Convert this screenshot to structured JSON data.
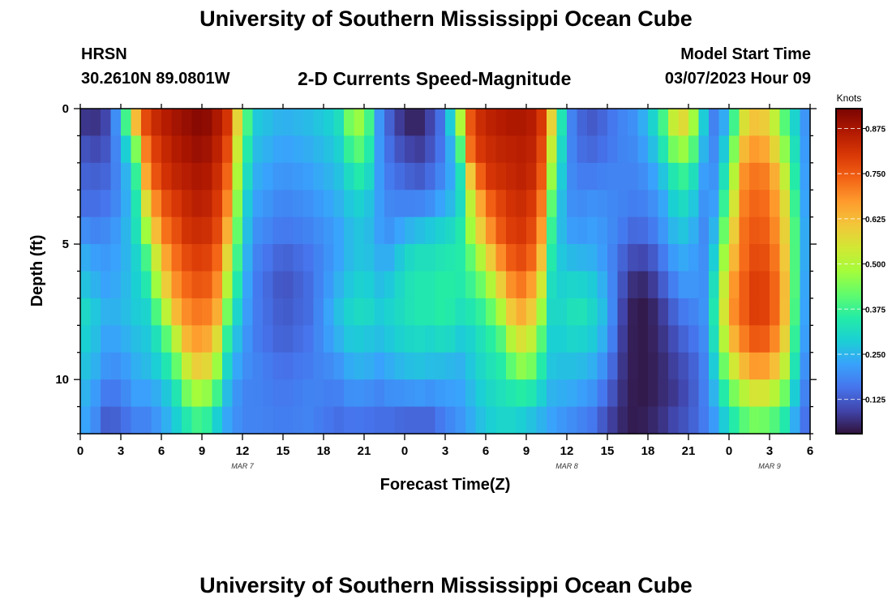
{
  "header": {
    "title": "University of Southern Mississippi Ocean Cube",
    "station": "HRSN",
    "coordinates": "30.2610N  89.0801W",
    "subtitle": "2-D Currents Speed-Magnitude",
    "model_start_label": "Model Start Time",
    "model_start_value": "03/07/2023 Hour 09"
  },
  "footer": {
    "title": "University of Southern Mississippi Ocean Cube"
  },
  "chart_data": {
    "type": "heatmap",
    "xlabel": "Forecast Time(Z)",
    "ylabel": "Depth (ft)",
    "colorbar_label": "Knots",
    "colormap": [
      "#30123b",
      "#4145ab",
      "#4675ed",
      "#39a2fc",
      "#1bcfd4",
      "#24eca6",
      "#61fc6c",
      "#a4fc3b",
      "#d1e834",
      "#f3c63a",
      "#fe9b2d",
      "#f36315",
      "#d93806",
      "#b11901",
      "#7a0403"
    ],
    "value_range": [
      0.03,
      0.93
    ],
    "colorbar_ticks": [
      0.875,
      0.75,
      0.625,
      0.5,
      0.375,
      0.25,
      0.125
    ],
    "colorbar_tick_labels": [
      "0.875",
      "0.750",
      "0.625",
      "0.500",
      "0.375",
      "0.250",
      "0.125"
    ],
    "x_range_hours": [
      0,
      54
    ],
    "x_tick_hours": [
      0,
      3,
      6,
      9,
      12,
      15,
      18,
      21,
      24,
      27,
      30,
      33,
      36,
      39,
      42,
      45,
      48,
      51,
      54
    ],
    "x_tick_labels": [
      "0",
      "3",
      "6",
      "9",
      "12",
      "15",
      "18",
      "21",
      "0",
      "3",
      "6",
      "9",
      "12",
      "15",
      "18",
      "21",
      "0",
      "3",
      "6"
    ],
    "date_labels": [
      {
        "label": "MAR 7",
        "hour": 12
      },
      {
        "label": "MAR 8",
        "hour": 36
      },
      {
        "label": "MAR 9",
        "hour": 51
      }
    ],
    "y_range_ft": [
      0,
      12
    ],
    "y_tick_values": [
      0,
      5,
      10
    ],
    "y_tick_labels": [
      "0",
      "5",
      "10"
    ],
    "depths_ft": [
      0.5,
      1.5,
      2.5,
      3.5,
      4.5,
      5.5,
      6.5,
      7.5,
      8.5,
      9.5,
      10.5,
      11.5
    ],
    "keyframes": [
      {
        "hour": 0,
        "speeds": [
          0.08,
          0.12,
          0.14,
          0.15,
          0.2,
          0.25,
          0.28,
          0.32,
          0.3,
          0.28,
          0.26,
          0.24
        ]
      },
      {
        "hour": 1,
        "speeds": [
          0.07,
          0.1,
          0.13,
          0.15,
          0.18,
          0.22,
          0.25,
          0.28,
          0.27,
          0.25,
          0.22,
          0.2
        ]
      },
      {
        "hour": 2,
        "speeds": [
          0.1,
          0.12,
          0.14,
          0.16,
          0.19,
          0.21,
          0.22,
          0.24,
          0.22,
          0.2,
          0.16,
          0.12
        ]
      },
      {
        "hour": 3,
        "speeds": [
          0.25,
          0.22,
          0.2,
          0.2,
          0.22,
          0.23,
          0.24,
          0.25,
          0.23,
          0.2,
          0.17,
          0.14
        ]
      },
      {
        "hour": 4,
        "speeds": [
          0.6,
          0.4,
          0.32,
          0.3,
          0.3,
          0.28,
          0.28,
          0.28,
          0.26,
          0.24,
          0.22,
          0.18
        ]
      },
      {
        "hour": 5,
        "speeds": [
          0.8,
          0.75,
          0.7,
          0.6,
          0.5,
          0.4,
          0.35,
          0.3,
          0.28,
          0.26,
          0.22,
          0.18
        ]
      },
      {
        "hour": 6,
        "speeds": [
          0.85,
          0.82,
          0.8,
          0.75,
          0.7,
          0.62,
          0.55,
          0.45,
          0.35,
          0.3,
          0.25,
          0.22
        ]
      },
      {
        "hour": 7,
        "speeds": [
          0.88,
          0.86,
          0.84,
          0.8,
          0.76,
          0.72,
          0.68,
          0.62,
          0.5,
          0.4,
          0.32,
          0.28
        ]
      },
      {
        "hour": 8,
        "speeds": [
          0.9,
          0.88,
          0.86,
          0.84,
          0.82,
          0.78,
          0.74,
          0.7,
          0.65,
          0.55,
          0.45,
          0.35
        ]
      },
      {
        "hour": 9,
        "speeds": [
          0.92,
          0.9,
          0.88,
          0.86,
          0.83,
          0.8,
          0.77,
          0.72,
          0.68,
          0.62,
          0.5,
          0.4
        ]
      },
      {
        "hour": 10,
        "speeds": [
          0.88,
          0.86,
          0.84,
          0.82,
          0.8,
          0.76,
          0.72,
          0.68,
          0.6,
          0.5,
          0.4,
          0.3
        ]
      },
      {
        "hour": 11,
        "speeds": [
          0.8,
          0.76,
          0.72,
          0.68,
          0.62,
          0.55,
          0.48,
          0.4,
          0.33,
          0.28,
          0.24,
          0.22
        ]
      },
      {
        "hour": 12,
        "speeds": [
          0.45,
          0.4,
          0.36,
          0.32,
          0.3,
          0.28,
          0.26,
          0.24,
          0.22,
          0.2,
          0.18,
          0.18
        ]
      },
      {
        "hour": 13,
        "speeds": [
          0.28,
          0.26,
          0.24,
          0.22,
          0.2,
          0.18,
          0.17,
          0.17,
          0.17,
          0.18,
          0.18,
          0.18
        ]
      },
      {
        "hour": 15,
        "speeds": [
          0.24,
          0.22,
          0.2,
          0.18,
          0.16,
          0.13,
          0.11,
          0.12,
          0.13,
          0.15,
          0.16,
          0.17
        ]
      },
      {
        "hour": 17,
        "speeds": [
          0.26,
          0.24,
          0.22,
          0.2,
          0.18,
          0.16,
          0.15,
          0.15,
          0.16,
          0.17,
          0.18,
          0.18
        ]
      },
      {
        "hour": 19,
        "speeds": [
          0.3,
          0.28,
          0.26,
          0.24,
          0.22,
          0.22,
          0.24,
          0.26,
          0.24,
          0.2,
          0.17,
          0.15
        ]
      },
      {
        "hour": 20,
        "speeds": [
          0.45,
          0.38,
          0.32,
          0.28,
          0.26,
          0.26,
          0.28,
          0.3,
          0.28,
          0.24,
          0.2,
          0.16
        ]
      },
      {
        "hour": 21,
        "speeds": [
          0.48,
          0.42,
          0.36,
          0.3,
          0.28,
          0.28,
          0.3,
          0.32,
          0.28,
          0.25,
          0.2,
          0.16
        ]
      },
      {
        "hour": 22,
        "speeds": [
          0.22,
          0.22,
          0.22,
          0.22,
          0.22,
          0.24,
          0.26,
          0.28,
          0.26,
          0.22,
          0.18,
          0.15
        ]
      },
      {
        "hour": 23,
        "speeds": [
          0.12,
          0.14,
          0.16,
          0.18,
          0.2,
          0.24,
          0.28,
          0.3,
          0.28,
          0.24,
          0.2,
          0.15
        ]
      },
      {
        "hour": 24,
        "speeds": [
          0.06,
          0.1,
          0.14,
          0.18,
          0.24,
          0.3,
          0.32,
          0.32,
          0.3,
          0.26,
          0.2,
          0.14
        ]
      },
      {
        "hour": 25,
        "speeds": [
          0.05,
          0.08,
          0.12,
          0.18,
          0.26,
          0.32,
          0.34,
          0.34,
          0.31,
          0.27,
          0.21,
          0.14
        ]
      },
      {
        "hour": 26,
        "speeds": [
          0.1,
          0.12,
          0.15,
          0.2,
          0.28,
          0.32,
          0.34,
          0.34,
          0.3,
          0.26,
          0.2,
          0.14
        ]
      },
      {
        "hour": 27,
        "speeds": [
          0.18,
          0.18,
          0.2,
          0.24,
          0.3,
          0.34,
          0.36,
          0.36,
          0.32,
          0.26,
          0.22,
          0.18
        ]
      },
      {
        "hour": 28,
        "speeds": [
          0.45,
          0.34,
          0.28,
          0.28,
          0.32,
          0.34,
          0.34,
          0.32,
          0.28,
          0.24,
          0.22,
          0.2
        ]
      },
      {
        "hour": 29,
        "speeds": [
          0.8,
          0.78,
          0.65,
          0.55,
          0.5,
          0.42,
          0.38,
          0.34,
          0.3,
          0.28,
          0.26,
          0.24
        ]
      },
      {
        "hour": 30,
        "speeds": [
          0.84,
          0.82,
          0.8,
          0.72,
          0.65,
          0.55,
          0.45,
          0.38,
          0.34,
          0.32,
          0.3,
          0.28
        ]
      },
      {
        "hour": 31,
        "speeds": [
          0.86,
          0.84,
          0.82,
          0.78,
          0.75,
          0.68,
          0.58,
          0.48,
          0.38,
          0.34,
          0.32,
          0.3
        ]
      },
      {
        "hour": 32,
        "speeds": [
          0.87,
          0.85,
          0.84,
          0.82,
          0.8,
          0.76,
          0.7,
          0.62,
          0.52,
          0.42,
          0.34,
          0.3
        ]
      },
      {
        "hour": 33,
        "speeds": [
          0.87,
          0.86,
          0.85,
          0.83,
          0.81,
          0.78,
          0.72,
          0.66,
          0.58,
          0.48,
          0.36,
          0.28
        ]
      },
      {
        "hour": 34,
        "speeds": [
          0.84,
          0.82,
          0.8,
          0.76,
          0.72,
          0.66,
          0.58,
          0.5,
          0.42,
          0.36,
          0.3,
          0.25
        ]
      },
      {
        "hour": 35,
        "speeds": [
          0.55,
          0.48,
          0.42,
          0.36,
          0.32,
          0.3,
          0.28,
          0.28,
          0.27,
          0.26,
          0.24,
          0.22
        ]
      },
      {
        "hour": 36,
        "speeds": [
          0.2,
          0.2,
          0.2,
          0.2,
          0.22,
          0.26,
          0.3,
          0.32,
          0.3,
          0.27,
          0.24,
          0.2
        ]
      },
      {
        "hour": 37,
        "speeds": [
          0.14,
          0.15,
          0.17,
          0.19,
          0.21,
          0.25,
          0.3,
          0.33,
          0.3,
          0.26,
          0.22,
          0.18
        ]
      },
      {
        "hour": 38,
        "speeds": [
          0.12,
          0.14,
          0.17,
          0.2,
          0.22,
          0.24,
          0.28,
          0.3,
          0.28,
          0.24,
          0.2,
          0.16
        ]
      },
      {
        "hour": 39,
        "speeds": [
          0.15,
          0.16,
          0.18,
          0.19,
          0.2,
          0.2,
          0.22,
          0.24,
          0.22,
          0.18,
          0.14,
          0.1
        ]
      },
      {
        "hour": 40,
        "speeds": [
          0.18,
          0.18,
          0.18,
          0.18,
          0.17,
          0.14,
          0.12,
          0.1,
          0.09,
          0.08,
          0.07,
          0.06
        ]
      },
      {
        "hour": 41,
        "speeds": [
          0.2,
          0.19,
          0.18,
          0.17,
          0.14,
          0.1,
          0.06,
          0.04,
          0.04,
          0.04,
          0.04,
          0.04
        ]
      },
      {
        "hour": 42,
        "speeds": [
          0.26,
          0.23,
          0.2,
          0.18,
          0.15,
          0.1,
          0.06,
          0.04,
          0.04,
          0.04,
          0.04,
          0.05
        ]
      },
      {
        "hour": 43,
        "speeds": [
          0.36,
          0.32,
          0.26,
          0.22,
          0.2,
          0.16,
          0.12,
          0.08,
          0.07,
          0.06,
          0.06,
          0.07
        ]
      },
      {
        "hour": 44,
        "speeds": [
          0.55,
          0.45,
          0.35,
          0.3,
          0.26,
          0.22,
          0.18,
          0.14,
          0.11,
          0.09,
          0.08,
          0.1
        ]
      },
      {
        "hour": 45,
        "speeds": [
          0.58,
          0.48,
          0.38,
          0.32,
          0.28,
          0.24,
          0.22,
          0.18,
          0.15,
          0.12,
          0.11,
          0.12
        ]
      },
      {
        "hour": 46,
        "speeds": [
          0.3,
          0.26,
          0.22,
          0.2,
          0.18,
          0.18,
          0.18,
          0.18,
          0.17,
          0.16,
          0.16,
          0.16
        ]
      },
      {
        "hour": 47,
        "speeds": [
          0.16,
          0.18,
          0.2,
          0.22,
          0.26,
          0.3,
          0.34,
          0.36,
          0.34,
          0.3,
          0.26,
          0.22
        ]
      },
      {
        "hour": 48,
        "speeds": [
          0.28,
          0.34,
          0.4,
          0.46,
          0.52,
          0.58,
          0.64,
          0.66,
          0.6,
          0.5,
          0.4,
          0.32
        ]
      },
      {
        "hour": 49,
        "speeds": [
          0.55,
          0.62,
          0.68,
          0.7,
          0.72,
          0.72,
          0.74,
          0.74,
          0.7,
          0.62,
          0.5,
          0.4
        ]
      },
      {
        "hour": 50,
        "speeds": [
          0.62,
          0.68,
          0.72,
          0.74,
          0.76,
          0.78,
          0.8,
          0.8,
          0.76,
          0.68,
          0.56,
          0.44
        ]
      },
      {
        "hour": 51,
        "speeds": [
          0.58,
          0.64,
          0.7,
          0.72,
          0.74,
          0.76,
          0.78,
          0.78,
          0.74,
          0.66,
          0.54,
          0.42
        ]
      },
      {
        "hour": 52,
        "speeds": [
          0.42,
          0.48,
          0.55,
          0.6,
          0.62,
          0.64,
          0.66,
          0.66,
          0.62,
          0.55,
          0.45,
          0.36
        ]
      },
      {
        "hour": 53,
        "speeds": [
          0.28,
          0.3,
          0.32,
          0.34,
          0.36,
          0.36,
          0.36,
          0.35,
          0.33,
          0.3,
          0.26,
          0.22
        ]
      },
      {
        "hour": 54,
        "speeds": [
          0.16,
          0.16,
          0.16,
          0.16,
          0.16,
          0.16,
          0.15,
          0.15,
          0.15,
          0.14,
          0.13,
          0.12
        ]
      }
    ]
  }
}
